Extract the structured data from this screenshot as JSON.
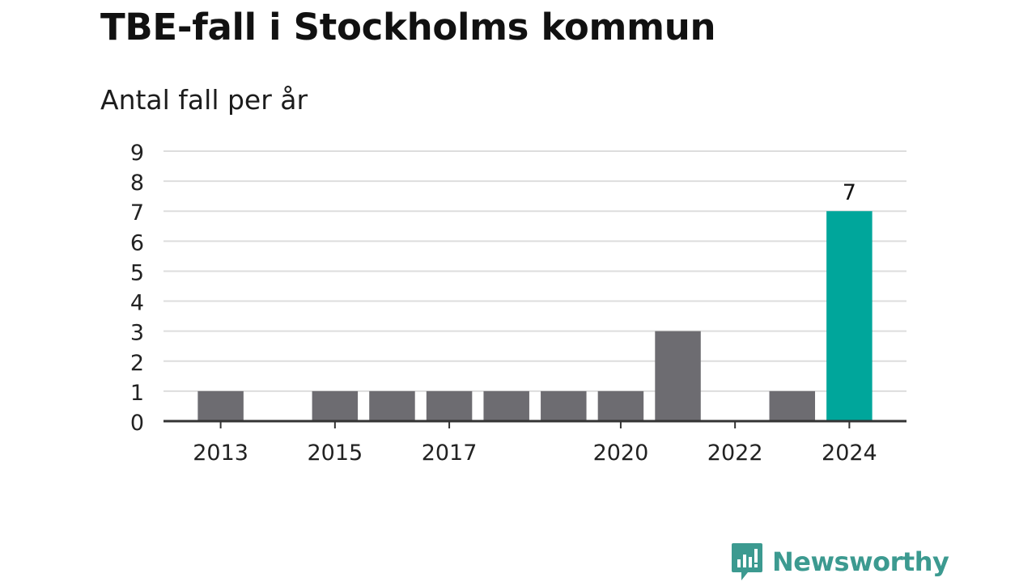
{
  "title": "TBE-fall i Stockholms kommun",
  "subtitle": "Antal fall per år",
  "brand": {
    "name": "Newsworthy",
    "color": "#3c9a90"
  },
  "colors": {
    "bar_default": "#6d6c71",
    "bar_highlight": "#00a69b",
    "grid": "#dddddd",
    "axis": "#333333"
  },
  "chart_data": {
    "type": "bar",
    "title": "TBE-fall i Stockholms kommun",
    "subtitle": "Antal fall per år",
    "categories": [
      "2013",
      "2014",
      "2015",
      "2016",
      "2017",
      "2018",
      "2019",
      "2020",
      "2021",
      "2022",
      "2023",
      "2024"
    ],
    "values": [
      1,
      0,
      1,
      1,
      1,
      1,
      1,
      1,
      3,
      0,
      1,
      7
    ],
    "x_tick_labels": [
      "2013",
      "2015",
      "2017",
      "2020",
      "2022",
      "2024"
    ],
    "y_ticks": [
      0,
      1,
      2,
      3,
      4,
      5,
      6,
      7,
      8,
      9
    ],
    "ylim": [
      0,
      9
    ],
    "grid": true,
    "highlight_category": "2024",
    "data_labels": [
      {
        "category": "2024",
        "text": "7"
      }
    ]
  }
}
